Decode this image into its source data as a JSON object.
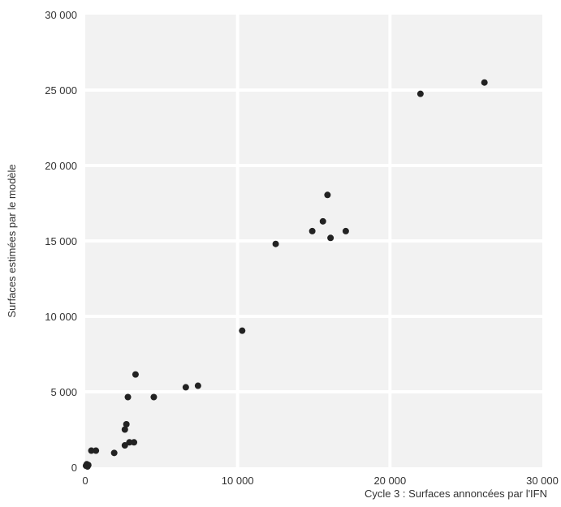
{
  "chart_data": {
    "type": "scatter",
    "title": "",
    "xlabel": "Cycle 3 : Surfaces annoncées par l'IFN",
    "ylabel": "Surfaces estimées par le modèle",
    "xlim": [
      0,
      30000
    ],
    "ylim": [
      0,
      30000
    ],
    "x_ticks": [
      0,
      10000,
      20000,
      30000
    ],
    "x_tick_labels": [
      "0",
      "10 000",
      "20 000",
      "30 000"
    ],
    "y_ticks": [
      0,
      5000,
      10000,
      15000,
      20000,
      25000,
      30000
    ],
    "y_tick_labels": [
      "0",
      "5 000",
      "10 000",
      "15 000",
      "20 000",
      "25 000",
      "30 000"
    ],
    "grid": true,
    "colors": {
      "background": "#f2f2f2",
      "grid": "#ffffff",
      "point": "#222222"
    },
    "points": [
      {
        "x": 50,
        "y": 100
      },
      {
        "x": 100,
        "y": 200
      },
      {
        "x": 150,
        "y": 50
      },
      {
        "x": 200,
        "y": 150
      },
      {
        "x": 400,
        "y": 1100
      },
      {
        "x": 700,
        "y": 1100
      },
      {
        "x": 1900,
        "y": 950
      },
      {
        "x": 2600,
        "y": 1450
      },
      {
        "x": 2600,
        "y": 2500
      },
      {
        "x": 2700,
        "y": 2850
      },
      {
        "x": 2900,
        "y": 1650
      },
      {
        "x": 3200,
        "y": 1650
      },
      {
        "x": 2800,
        "y": 4650
      },
      {
        "x": 3300,
        "y": 6150
      },
      {
        "x": 4500,
        "y": 4650
      },
      {
        "x": 6600,
        "y": 5300
      },
      {
        "x": 7400,
        "y": 5400
      },
      {
        "x": 10300,
        "y": 9050
      },
      {
        "x": 12500,
        "y": 14800
      },
      {
        "x": 14900,
        "y": 15650
      },
      {
        "x": 15600,
        "y": 16300
      },
      {
        "x": 15900,
        "y": 18050
      },
      {
        "x": 16100,
        "y": 15200
      },
      {
        "x": 17100,
        "y": 15650
      },
      {
        "x": 22000,
        "y": 24750
      },
      {
        "x": 26200,
        "y": 25500
      }
    ]
  }
}
